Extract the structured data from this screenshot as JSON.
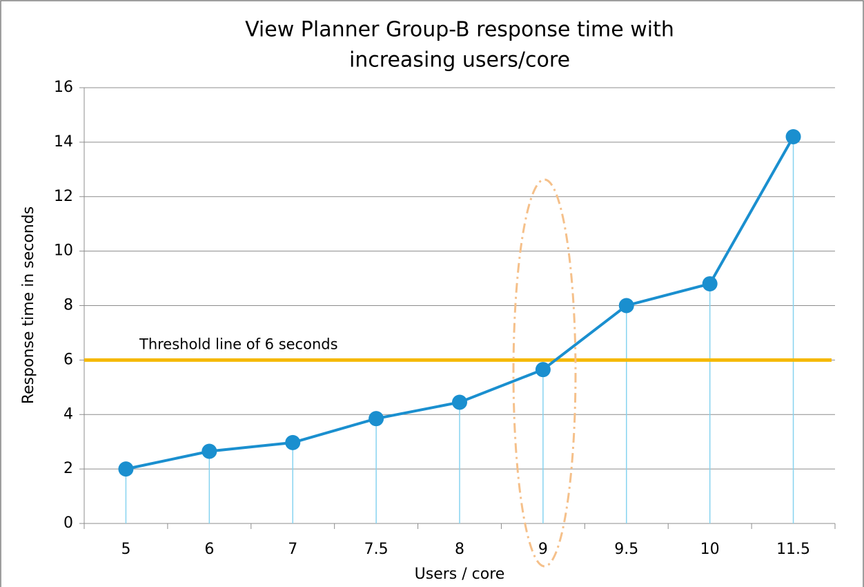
{
  "chart_data": {
    "type": "line",
    "title": [
      "View Planner Group-B response time with",
      "increasing  users/core"
    ],
    "x_label": "Users / core",
    "y_label": "Response  time  in  seconds",
    "categories": [
      "5",
      "6",
      "7",
      "7.5",
      "8",
      "9",
      "9.5",
      "10",
      "11.5"
    ],
    "series": [
      {
        "name": "Response time",
        "color": "#1a8fcf",
        "values": [
          2.0,
          2.65,
          2.97,
          3.85,
          4.45,
          5.65,
          8.0,
          8.8,
          14.2
        ]
      }
    ],
    "drop_line_color": "#86d3f0",
    "threshold": {
      "value": 6,
      "label": "Threshold line of 6 seconds",
      "color": "#f5b800"
    },
    "ylim": [
      0,
      16
    ],
    "yticks": [
      0,
      2,
      4,
      6,
      8,
      10,
      12,
      14,
      16
    ],
    "grid": true
  }
}
